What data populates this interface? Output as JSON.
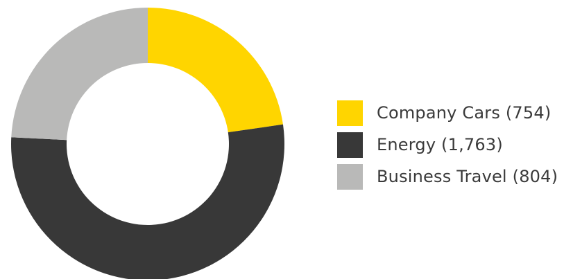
{
  "chart_data": {
    "type": "pie",
    "donut": true,
    "title": "",
    "categories": [
      "Company Cars",
      "Energy",
      "Business Travel"
    ],
    "values": [
      754,
      1763,
      804
    ],
    "colors": [
      "#ffd500",
      "#383838",
      "#b9b9b8"
    ],
    "legend_position": "right",
    "legend": [
      {
        "label": "Company Cars (754)",
        "color": "#ffd500"
      },
      {
        "label": "Energy (1,763)",
        "color": "#383838"
      },
      {
        "label": "Business Travel (804)",
        "color": "#b9b9b8"
      }
    ]
  }
}
